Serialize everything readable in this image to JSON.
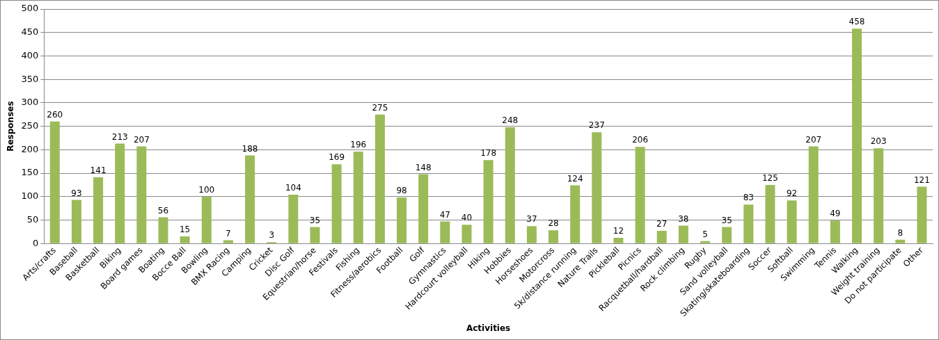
{
  "chart_data": {
    "type": "bar",
    "xlabel": "Activities",
    "ylabel": "Responses",
    "categories": [
      "Arts/crafts",
      "Baseball",
      "Basketball",
      "Biking",
      "Board games",
      "Boating",
      "Bocce Ball",
      "Bowling",
      "BMX Racing",
      "Camping",
      "Cricket",
      "Disc Golf",
      "Equestrian/horse",
      "Festivals",
      "Fishing",
      "Fitness/aerobics",
      "Football",
      "Golf",
      "Gymnastics",
      "Hardcourt volleyball",
      "Hiking",
      "Hobbies",
      "Horseshoes",
      "Motorcross",
      "5k/distance running",
      "Nature Trails",
      "Pickleball",
      "Picnics",
      "Racquetball/hardball",
      "Rock climbing",
      "Rugby",
      "Sand volleyball",
      "Skating/skateboarding",
      "Soccer",
      "Softball",
      "Swimming",
      "Tennis",
      "Walking",
      "Weight training",
      "Do not participate",
      "Other"
    ],
    "values": [
      260,
      93,
      141,
      213,
      207,
      56,
      15,
      100,
      7,
      188,
      3,
      104,
      35,
      169,
      196,
      275,
      98,
      148,
      47,
      40,
      178,
      248,
      37,
      28,
      124,
      237,
      12,
      206,
      27,
      38,
      5,
      35,
      83,
      125,
      92,
      207,
      49,
      458,
      203,
      8,
      121
    ],
    "color": "#9bbb59",
    "ylim": [
      0,
      500
    ],
    "yticks": [
      0,
      50,
      100,
      150,
      200,
      250,
      300,
      350,
      400,
      450,
      500
    ],
    "grid": "y",
    "legend": false,
    "data_labels": true
  }
}
